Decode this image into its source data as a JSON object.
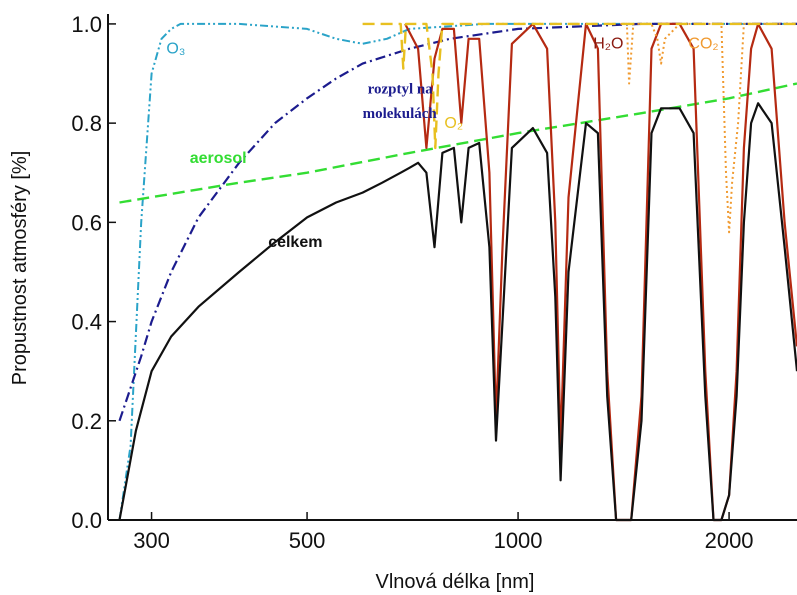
{
  "chart_data": {
    "type": "line",
    "xlabel": "Vlnová délka [nm]",
    "ylabel": "Propustnost atmosféry [%]",
    "x_scale": "log",
    "xlim": [
      260,
      2500
    ],
    "ylim": [
      0,
      1.02
    ],
    "x_ticks": [
      300,
      500,
      1000,
      2000
    ],
    "x_tick_labels": [
      "300",
      "500",
      "1000",
      "2000"
    ],
    "y_ticks": [
      0.0,
      0.2,
      0.4,
      0.6,
      0.8,
      1.0
    ],
    "y_tick_labels": [
      "0.0",
      "0.2",
      "0.4",
      "0.6",
      "0.8",
      "1.0"
    ],
    "grid": false,
    "series": [
      {
        "name": "O3",
        "color": "#2aa3c8",
        "style": "dash-dot-dot",
        "x": [
          270,
          280,
          290,
          300,
          310,
          320,
          330,
          340,
          350,
          400,
          500,
          550,
          600,
          650,
          700,
          900,
          2500
        ],
        "y": [
          0.0,
          0.15,
          0.6,
          0.9,
          0.97,
          0.99,
          1.0,
          1.0,
          1.0,
          1.0,
          0.99,
          0.97,
          0.96,
          0.97,
          0.99,
          1.0,
          1.0
        ]
      },
      {
        "name": "rozptyl na molekulách",
        "color": "#1c1c8e",
        "style": "dash-dot",
        "x": [
          270,
          290,
          300,
          320,
          350,
          400,
          450,
          500,
          550,
          600,
          700,
          800,
          1000,
          1500,
          2500
        ],
        "y": [
          0.2,
          0.33,
          0.4,
          0.5,
          0.61,
          0.72,
          0.8,
          0.85,
          0.89,
          0.92,
          0.95,
          0.97,
          0.99,
          1.0,
          1.0
        ]
      },
      {
        "name": "aerosol",
        "color": "#33dd33",
        "style": "dashed",
        "x": [
          270,
          400,
          500,
          700,
          1000,
          1500,
          2000,
          2500
        ],
        "y": [
          0.64,
          0.68,
          0.7,
          0.74,
          0.78,
          0.82,
          0.85,
          0.88
        ]
      },
      {
        "name": "H2O",
        "color": "#b52a12",
        "style": "solid",
        "x": [
          690,
          720,
          740,
          760,
          780,
          810,
          830,
          850,
          880,
          910,
          930,
          950,
          980,
          1050,
          1100,
          1130,
          1150,
          1180,
          1250,
          1300,
          1340,
          1380,
          1420,
          1450,
          1500,
          1550,
          1600,
          1700,
          1780,
          1850,
          1900,
          1950,
          2000,
          2050,
          2100,
          2150,
          2200,
          2300,
          2400,
          2500
        ],
        "y": [
          1.0,
          0.95,
          0.75,
          0.93,
          0.99,
          0.99,
          0.8,
          0.97,
          0.97,
          0.7,
          0.2,
          0.55,
          0.96,
          1.0,
          0.95,
          0.6,
          0.15,
          0.65,
          1.0,
          0.95,
          0.3,
          0.0,
          0.0,
          0.0,
          0.25,
          0.95,
          1.0,
          1.0,
          0.95,
          0.3,
          0.0,
          0.0,
          0.05,
          0.3,
          0.75,
          0.95,
          1.0,
          0.95,
          0.6,
          0.35
        ]
      },
      {
        "name": "CO2",
        "color": "#f09a30",
        "style": "dotted",
        "x": [
          1400,
          1430,
          1440,
          1460,
          1550,
          1580,
          1600,
          1620,
          1700,
          1950,
          1980,
          2000,
          2020,
          2060,
          2100,
          2500
        ],
        "y": [
          1.0,
          1.0,
          0.88,
          1.0,
          1.0,
          0.97,
          0.92,
          0.97,
          1.0,
          1.0,
          0.7,
          0.58,
          0.68,
          0.8,
          1.0,
          1.0
        ]
      },
      {
        "name": "O2",
        "color": "#e8c020",
        "style": "dashed",
        "x": [
          600,
          680,
          686,
          692,
          700,
          740,
          755,
          762,
          770,
          780,
          2500
        ],
        "y": [
          1.0,
          1.0,
          0.91,
          1.0,
          1.0,
          1.0,
          0.9,
          0.75,
          0.9,
          1.0,
          1.0
        ]
      },
      {
        "name": "celkem",
        "color": "#111111",
        "style": "solid",
        "x": [
          270,
          285,
          300,
          320,
          350,
          400,
          450,
          500,
          550,
          600,
          640,
          680,
          700,
          720,
          740,
          760,
          780,
          810,
          830,
          850,
          880,
          910,
          930,
          950,
          980,
          1050,
          1100,
          1130,
          1150,
          1180,
          1250,
          1300,
          1340,
          1380,
          1420,
          1450,
          1500,
          1550,
          1600,
          1700,
          1780,
          1850,
          1900,
          1950,
          2000,
          2050,
          2100,
          2150,
          2200,
          2300,
          2400,
          2500
        ],
        "y": [
          0.0,
          0.18,
          0.3,
          0.37,
          0.43,
          0.5,
          0.56,
          0.61,
          0.64,
          0.66,
          0.68,
          0.7,
          0.71,
          0.72,
          0.7,
          0.55,
          0.74,
          0.75,
          0.6,
          0.75,
          0.76,
          0.55,
          0.16,
          0.4,
          0.75,
          0.79,
          0.74,
          0.45,
          0.08,
          0.5,
          0.8,
          0.78,
          0.25,
          0.0,
          0.0,
          0.0,
          0.2,
          0.78,
          0.83,
          0.83,
          0.78,
          0.25,
          0.0,
          0.0,
          0.05,
          0.25,
          0.6,
          0.8,
          0.84,
          0.8,
          0.55,
          0.3
        ]
      }
    ],
    "annotations": [
      {
        "text": "O₃",
        "x": 315,
        "y": 0.94,
        "color": "#2aa3c8",
        "font": "sans"
      },
      {
        "text": "rozptyl na",
        "x": 610,
        "y": 0.86,
        "color": "#1c1c8e",
        "font": "serif"
      },
      {
        "text": "molekulách",
        "x": 600,
        "y": 0.81,
        "color": "#1c1c8e",
        "font": "serif"
      },
      {
        "text": "aerosol",
        "x": 340,
        "y": 0.72,
        "color": "#33dd33",
        "font": "sans-bold"
      },
      {
        "text": "celkem",
        "x": 440,
        "y": 0.55,
        "color": "#111111",
        "font": "sans-bold"
      },
      {
        "text": "H₂O",
        "x": 1280,
        "y": 0.95,
        "color": "#8a1a10",
        "font": "sans"
      },
      {
        "text": "CO₂",
        "x": 1750,
        "y": 0.95,
        "color": "#f09a30",
        "font": "sans"
      },
      {
        "text": "O₂",
        "x": 785,
        "y": 0.79,
        "color": "#e8c020",
        "font": "sans"
      }
    ]
  }
}
